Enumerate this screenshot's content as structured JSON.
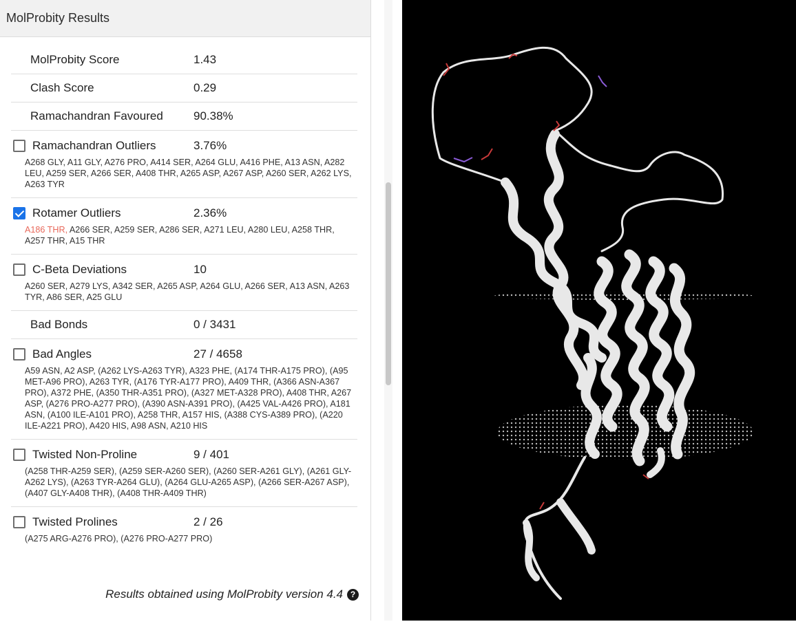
{
  "panel": {
    "title": "MolProbity Results"
  },
  "metrics": [
    {
      "kind": "plain",
      "label": "MolProbity Score",
      "value": "1.43"
    },
    {
      "kind": "plain",
      "label": "Clash Score",
      "value": "0.29"
    },
    {
      "kind": "plain",
      "label": "Ramachandran Favoured",
      "value": "90.38%"
    },
    {
      "kind": "check",
      "checked": false,
      "label": "Ramachandran Outliers",
      "value": "3.76%",
      "highlight": "",
      "details": "A268 GLY, A11 GLY, A276 PRO, A414 SER, A264 GLU, A416 PHE, A13 ASN, A282 LEU, A259 SER, A266 SER, A408 THR, A265 ASP, A267 ASP, A260 SER, A262 LYS, A263 TYR"
    },
    {
      "kind": "check",
      "checked": true,
      "label": "Rotamer Outliers",
      "value": "2.36%",
      "highlight": "A186 THR,",
      "details": " A266 SER, A259 SER, A286 SER, A271 LEU, A280 LEU, A258 THR, A257 THR, A15 THR"
    },
    {
      "kind": "check",
      "checked": false,
      "label": "C-Beta Deviations",
      "value": "10",
      "highlight": "",
      "details": "A260 SER, A279 LYS, A342 SER, A265 ASP, A264 GLU, A266 SER, A13 ASN, A263 TYR, A86 SER, A25 GLU"
    },
    {
      "kind": "plain",
      "label": "Bad Bonds",
      "value": "0 / 3431"
    },
    {
      "kind": "check",
      "checked": false,
      "label": "Bad Angles",
      "value": "27 / 4658",
      "highlight": "",
      "details": "A59 ASN, A2 ASP, (A262 LYS-A263 TYR), A323 PHE, (A174 THR-A175 PRO), (A95 MET-A96 PRO), A263 TYR, (A176 TYR-A177 PRO), A409 THR, (A366 ASN-A367 PRO), A372 PHE, (A350 THR-A351 PRO), (A327 MET-A328 PRO), A408 THR, A267 ASP, (A276 PRO-A277 PRO), (A390 ASN-A391 PRO), (A425 VAL-A426 PRO), A181 ASN, (A100 ILE-A101 PRO), A258 THR, A157 HIS, (A388 CYS-A389 PRO), (A220 ILE-A221 PRO), A420 HIS, A98 ASN, A210 HIS"
    },
    {
      "kind": "check",
      "checked": false,
      "label": "Twisted Non-Proline",
      "value": "9 / 401",
      "highlight": "",
      "details": "(A258 THR-A259 SER), (A259 SER-A260 SER), (A260 SER-A261 GLY), (A261 GLY-A262 LYS), (A263 TYR-A264 GLU), (A264 GLU-A265 ASP), (A266 SER-A267 ASP), (A407 GLY-A408 THR), (A408 THR-A409 THR)"
    },
    {
      "kind": "check",
      "checked": false,
      "label": "Twisted Prolines",
      "value": "2 / 26",
      "highlight": "",
      "details": "(A275 ARG-A276 PRO), (A276 PRO-A277 PRO)"
    }
  ],
  "footer": {
    "text": "Results obtained using MolProbity version 4.4"
  },
  "icons": {
    "help": "question-circle-icon",
    "checkbox": "checkbox-icon"
  },
  "colors": {
    "checkbox_checked": "#1a73e8",
    "highlight_residue": "#e8685a",
    "viewer_background": "#000000"
  }
}
